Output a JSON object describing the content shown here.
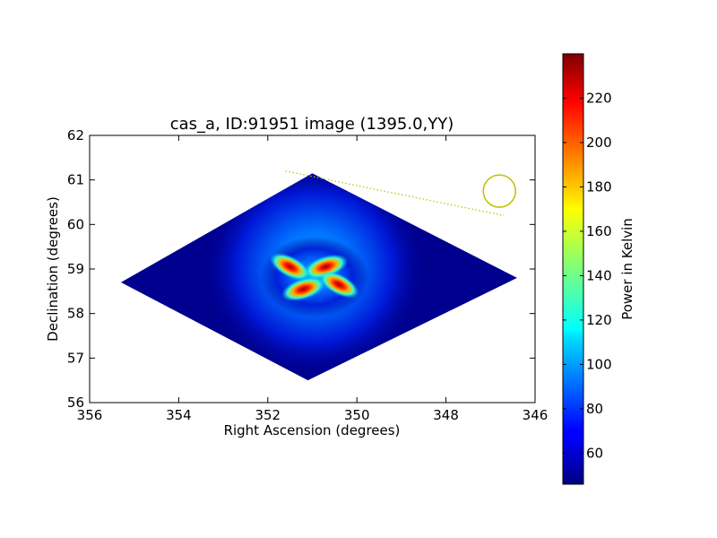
{
  "chart_data": {
    "type": "heatmap",
    "title": "cas_a, ID:91951 image (1395.0,YY)",
    "xlabel": "Right Ascension (degrees)",
    "ylabel": "Declination (degrees)",
    "xlim": [
      356,
      346
    ],
    "ylim": [
      56,
      62
    ],
    "x_ticks": [
      "356",
      "354",
      "352",
      "350",
      "348",
      "346"
    ],
    "y_ticks": [
      "56",
      "57",
      "58",
      "59",
      "60",
      "61",
      "62"
    ],
    "colorbar": {
      "label": "Power in Kelvin",
      "range": [
        46,
        240
      ],
      "colormap": "jet",
      "ticks": [
        "60",
        "80",
        "100",
        "120",
        "140",
        "160",
        "180",
        "200",
        "220"
      ]
    },
    "coverage_footprint": [
      [
        355.3,
        58.7
      ],
      [
        351.0,
        61.15
      ],
      [
        346.4,
        58.8
      ],
      [
        351.1,
        56.5
      ]
    ],
    "peaks": [
      {
        "ra": 350.7,
        "dec": 59.05,
        "value": 235
      },
      {
        "ra": 351.5,
        "dec": 59.05,
        "value": 220
      },
      {
        "ra": 351.2,
        "dec": 58.55,
        "value": 230
      },
      {
        "ra": 350.4,
        "dec": 58.65,
        "value": 210
      }
    ],
    "background_level": 50,
    "annotations": {
      "circle": {
        "ra": 346.8,
        "dec": 60.75,
        "color": "#bfbf00"
      },
      "dotted_line": {
        "from": [
          351.6,
          61.2
        ],
        "to": [
          346.7,
          60.2
        ],
        "color": "#bfbf00"
      }
    }
  }
}
